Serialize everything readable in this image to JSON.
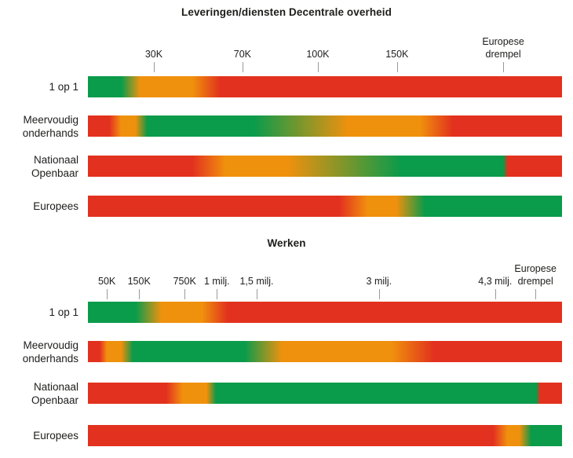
{
  "colors": {
    "green": "#0a9b4b",
    "orange": "#f0910d",
    "red": "#e2311e",
    "tick_mark": "#9a9a9a",
    "text": "#1d1d1b"
  },
  "chart_data": [
    {
      "type": "heatmap",
      "title": "Leveringen/diensten Decentrale overheid",
      "x_ticks": [
        {
          "lines": [
            "30K"
          ],
          "pos_pct": 13.9
        },
        {
          "lines": [
            "70K"
          ],
          "pos_pct": 32.6
        },
        {
          "lines": [
            "100K"
          ],
          "pos_pct": 48.5
        },
        {
          "lines": [
            "150K"
          ],
          "pos_pct": 65.2
        },
        {
          "lines": [
            "Europese",
            "drempel"
          ],
          "pos_pct": 87.6
        }
      ],
      "rows": [
        {
          "label": "1 op 1",
          "label_lines": [
            "1 op 1"
          ],
          "gradient_stops": [
            [
              "green",
              0
            ],
            [
              "green",
              7
            ],
            [
              "orange",
              11
            ],
            [
              "orange",
              22
            ],
            [
              "red",
              28
            ],
            [
              "red",
              100
            ]
          ]
        },
        {
          "label": "Meervoudig onderhands",
          "label_lines": [
            "Meervoudig",
            "onderhands"
          ],
          "gradient_stops": [
            [
              "red",
              0
            ],
            [
              "red",
              4.5
            ],
            [
              "orange",
              7
            ],
            [
              "orange",
              10
            ],
            [
              "green",
              12.5
            ],
            [
              "green",
              35
            ],
            [
              "orange",
              55
            ],
            [
              "orange",
              70
            ],
            [
              "red",
              77
            ],
            [
              "red",
              100
            ]
          ]
        },
        {
          "label": "Nationaal Openbaar",
          "label_lines": [
            "Nationaal",
            "Openbaar"
          ],
          "gradient_stops": [
            [
              "red",
              0
            ],
            [
              "red",
              22
            ],
            [
              "orange",
              29
            ],
            [
              "orange",
              42
            ],
            [
              "green",
              66
            ],
            [
              "green",
              87.5
            ],
            [
              "red",
              88.5
            ],
            [
              "red",
              100
            ]
          ]
        },
        {
          "label": "Europees",
          "label_lines": [
            "Europees"
          ],
          "gradient_stops": [
            [
              "red",
              0
            ],
            [
              "red",
              53
            ],
            [
              "orange",
              59
            ],
            [
              "orange",
              65
            ],
            [
              "green",
              71
            ],
            [
              "green",
              100
            ]
          ]
        }
      ]
    },
    {
      "type": "heatmap",
      "title": "Werken",
      "x_ticks": [
        {
          "lines": [
            "50K"
          ],
          "pos_pct": 4.0
        },
        {
          "lines": [
            "150K"
          ],
          "pos_pct": 10.8
        },
        {
          "lines": [
            "750K"
          ],
          "pos_pct": 20.4
        },
        {
          "lines": [
            "1 milj."
          ],
          "pos_pct": 27.2
        },
        {
          "lines": [
            "1,5 milj."
          ],
          "pos_pct": 35.6
        },
        {
          "lines": [
            "3 milj."
          ],
          "pos_pct": 61.4
        },
        {
          "lines": [
            "4,3 milj."
          ],
          "pos_pct": 85.9
        },
        {
          "lines": [
            "Europese",
            "drempel"
          ],
          "pos_pct": 94.4
        }
      ],
      "rows": [
        {
          "label": "1 op 1",
          "label_lines": [
            "1 op 1"
          ],
          "gradient_stops": [
            [
              "green",
              0
            ],
            [
              "green",
              10
            ],
            [
              "orange",
              15.5
            ],
            [
              "orange",
              24
            ],
            [
              "red",
              29.5
            ],
            [
              "red",
              100
            ]
          ]
        },
        {
          "label": "Meervoudig onderhands",
          "label_lines": [
            "Meervoudig",
            "onderhands"
          ],
          "gradient_stops": [
            [
              "red",
              0
            ],
            [
              "red",
              2.5
            ],
            [
              "orange",
              4
            ],
            [
              "orange",
              7
            ],
            [
              "green",
              9.5
            ],
            [
              "green",
              33
            ],
            [
              "orange",
              41
            ],
            [
              "orange",
              64
            ],
            [
              "red",
              73
            ],
            [
              "red",
              100
            ]
          ]
        },
        {
          "label": "Nationaal Openbaar",
          "label_lines": [
            "Nationaal",
            "Openbaar"
          ],
          "gradient_stops": [
            [
              "red",
              0
            ],
            [
              "red",
              16.5
            ],
            [
              "orange",
              20
            ],
            [
              "orange",
              25
            ],
            [
              "green",
              27
            ],
            [
              "green",
              94.5
            ],
            [
              "red",
              95.3
            ],
            [
              "red",
              100
            ]
          ]
        },
        {
          "label": "Europees",
          "label_lines": [
            "Europees"
          ],
          "gradient_stops": [
            [
              "red",
              0
            ],
            [
              "red",
              85.5
            ],
            [
              "orange",
              88.5
            ],
            [
              "orange",
              91
            ],
            [
              "green",
              93.5
            ],
            [
              "green",
              100
            ]
          ]
        }
      ]
    }
  ]
}
